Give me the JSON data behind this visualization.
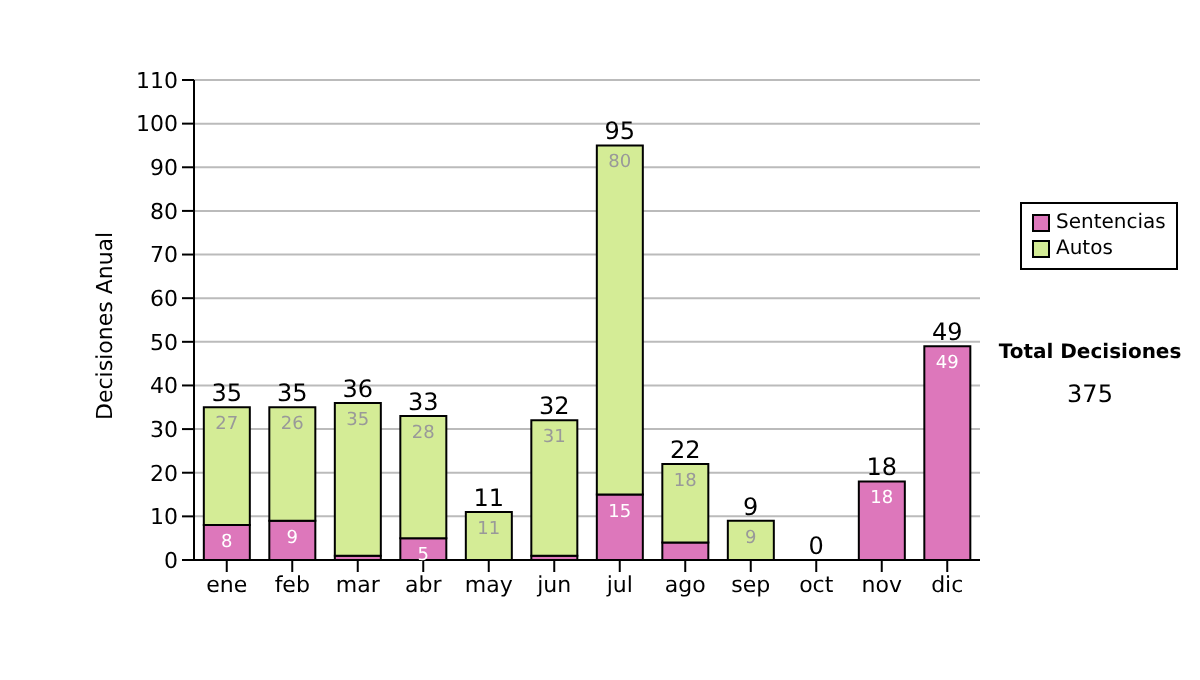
{
  "chart_data": {
    "type": "bar",
    "stacked": true,
    "ylabel": "Decisiones Anual",
    "categories": [
      "ene",
      "feb",
      "mar",
      "abr",
      "may",
      "jun",
      "jul",
      "ago",
      "sep",
      "oct",
      "nov",
      "dic"
    ],
    "series": [
      {
        "name": "Sentencias",
        "color": "#dd77bb",
        "values": [
          8,
          9,
          1,
          5,
          0,
          1,
          15,
          4,
          0,
          0,
          18,
          49
        ],
        "value_labels": [
          "8",
          "9",
          null,
          "5",
          null,
          null,
          "15",
          null,
          null,
          null,
          "18",
          "49"
        ]
      },
      {
        "name": "Autos",
        "color": "#d4ec96",
        "values": [
          27,
          26,
          35,
          28,
          11,
          31,
          80,
          18,
          9,
          0,
          0,
          0
        ],
        "value_labels": [
          "27",
          "26",
          "35",
          "28",
          "11",
          "31",
          "80",
          "18",
          "9",
          null,
          null,
          null
        ]
      }
    ],
    "totals": [
      "35",
      "35",
      "36",
      "33",
      "11",
      "32",
      "95",
      "22",
      "9",
      "0",
      "18",
      "49"
    ],
    "ylim": [
      0,
      110
    ],
    "yticks": [
      0,
      10,
      20,
      30,
      40,
      50,
      60,
      70,
      80,
      90,
      100,
      110
    ],
    "grid": "y",
    "legend": "right",
    "annotations": [
      "Total Decisiones",
      "375"
    ]
  }
}
